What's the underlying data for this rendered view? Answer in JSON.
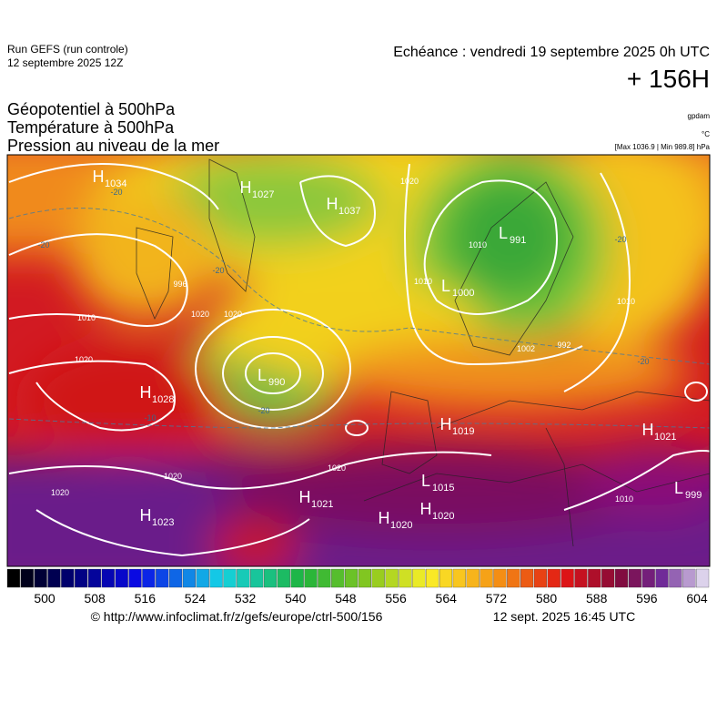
{
  "header": {
    "run": "Run GEFS (run controle)",
    "run_date": "12 septembre 2025 12Z",
    "forecast": "Echéance : vendredi 19 septembre 2025 0h UTC",
    "lead": "+ 156H"
  },
  "titles": [
    "Géopotentiel à 500hPa",
    "Température à 500hPa",
    "Pression au niveau de la mer"
  ],
  "units": {
    "geopotential": "gpdam",
    "temperature": "°C",
    "pressure": "[Max 1036.9 | Min 989.8] hPa"
  },
  "centers": [
    {
      "letter": "H",
      "value": 1034
    },
    {
      "letter": "H",
      "value": 1027
    },
    {
      "letter": "H",
      "value": 1037
    },
    {
      "letter": "L",
      "value": 991
    },
    {
      "letter": "L",
      "value": 1000
    },
    {
      "letter": "L",
      "value": 990
    },
    {
      "letter": "H",
      "value": 1028
    },
    {
      "letter": "H",
      "value": 1019
    },
    {
      "letter": "H",
      "value": 1021
    },
    {
      "letter": "L",
      "value": 1015
    },
    {
      "letter": "H",
      "value": 1021
    },
    {
      "letter": "H",
      "value": 1020
    },
    {
      "letter": "H",
      "value": 1020
    },
    {
      "letter": "H",
      "value": 1023
    },
    {
      "letter": "L",
      "value": 999
    }
  ],
  "isobar_labels": [
    1020,
    1010,
    1020,
    1020,
    1020,
    1010,
    1010,
    1010,
    1020,
    1020,
    1020,
    1010,
    996,
    992,
    1002
  ],
  "temperature_labels": [
    -20,
    -20,
    -20,
    -20,
    -20,
    -20,
    -10
  ],
  "colorbar": {
    "labels": [
      500,
      508,
      516,
      524,
      532,
      540,
      548,
      556,
      564,
      572,
      580,
      588,
      596,
      604
    ]
  },
  "footer": {
    "url": "© http://www.infoclimat.fr/z/gefs/europe/ctrl-500/156",
    "issued": "12 sept. 2025 16:45 UTC"
  }
}
